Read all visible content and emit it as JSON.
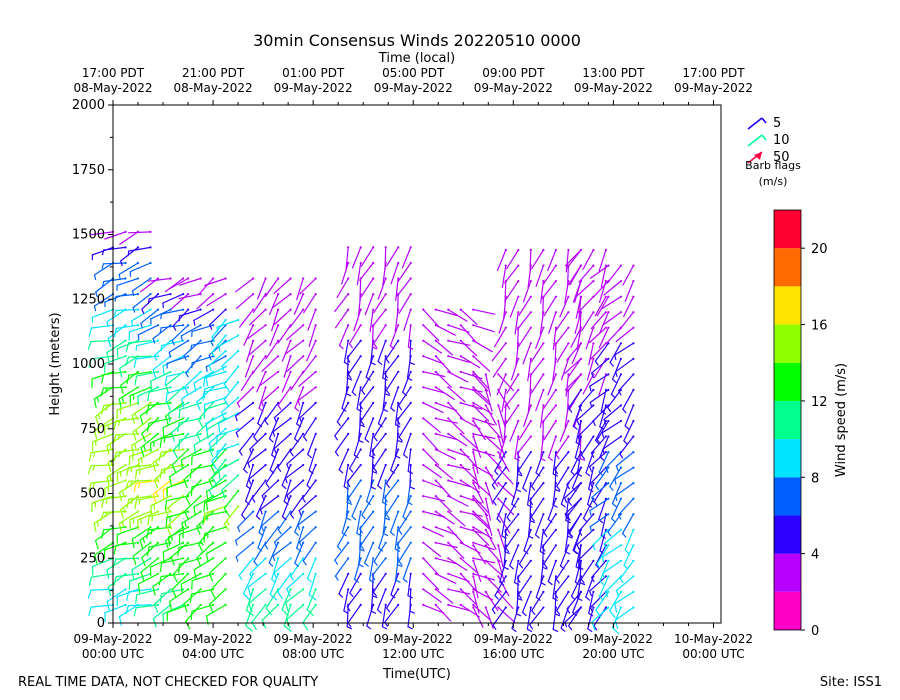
{
  "chart_data": {
    "type": "wind-barb-profile",
    "title": "30min Consensus Winds 20220510 0000",
    "top_axis_label": "Time (local)",
    "top_ticks": [
      {
        "h": 0,
        "line1": "17:00 PDT",
        "line2": "08-May-2022"
      },
      {
        "h": 4,
        "line1": "21:00 PDT",
        "line2": "08-May-2022"
      },
      {
        "h": 8,
        "line1": "01:00 PDT",
        "line2": "09-May-2022"
      },
      {
        "h": 12,
        "line1": "05:00 PDT",
        "line2": "09-May-2022"
      },
      {
        "h": 16,
        "line1": "09:00 PDT",
        "line2": "09-May-2022"
      },
      {
        "h": 20,
        "line1": "13:00 PDT",
        "line2": "09-May-2022"
      },
      {
        "h": 24,
        "line1": "17:00 PDT",
        "line2": "09-May-2022"
      }
    ],
    "xlabel": "Time(UTC)",
    "x_ticks": [
      {
        "h": 0,
        "line1": "09-May-2022",
        "line2": "00:00 UTC"
      },
      {
        "h": 4,
        "line1": "09-May-2022",
        "line2": "04:00 UTC"
      },
      {
        "h": 8,
        "line1": "09-May-2022",
        "line2": "08:00 UTC"
      },
      {
        "h": 12,
        "line1": "09-May-2022",
        "line2": "12:00 UTC"
      },
      {
        "h": 16,
        "line1": "09-May-2022",
        "line2": "16:00 UTC"
      },
      {
        "h": 20,
        "line1": "09-May-2022",
        "line2": "20:00 UTC"
      },
      {
        "h": 24,
        "line1": "10-May-2022",
        "line2": "00:00 UTC"
      }
    ],
    "xlim_hours": [
      0,
      24.3
    ],
    "ylabel": "Height (meters)",
    "ylim": [
      0,
      2000
    ],
    "y_ticks": [
      0,
      250,
      500,
      750,
      1000,
      1250,
      1500,
      1750,
      2000
    ],
    "legend": {
      "title": "Barb flags",
      "units": "(m/s)",
      "entries": [
        {
          "label": "5",
          "color": "#1a00ff"
        },
        {
          "label": "10",
          "color": "#00ff99"
        },
        {
          "label": "50",
          "color": "#ff0044"
        }
      ]
    },
    "colorbar": {
      "label": "Wind speed (m/s)",
      "ticks": [
        0,
        4,
        8,
        12,
        16,
        20
      ],
      "range": [
        0,
        22
      ],
      "bins": [
        {
          "from": 0,
          "to": 2,
          "color": "#ff00c8"
        },
        {
          "from": 2,
          "to": 4,
          "color": "#b800ff"
        },
        {
          "from": 4,
          "to": 6,
          "color": "#2b00ff"
        },
        {
          "from": 6,
          "to": 8,
          "color": "#0060ff"
        },
        {
          "from": 8,
          "to": 10,
          "color": "#00e5ff"
        },
        {
          "from": 10,
          "to": 12,
          "color": "#00ff8c"
        },
        {
          "from": 12,
          "to": 14,
          "color": "#00ff00"
        },
        {
          "from": 14,
          "to": 16,
          "color": "#90ff00"
        },
        {
          "from": 16,
          "to": 18,
          "color": "#ffe600"
        },
        {
          "from": 18,
          "to": 20,
          "color": "#ff6a00"
        },
        {
          "from": 20,
          "to": 22,
          "color": "#ff0033"
        }
      ]
    },
    "segments": [
      {
        "start": 0.0,
        "end": 1.5,
        "low": 70,
        "high": 1560,
        "profile": [
          [
            70,
            9
          ],
          [
            400,
            14
          ],
          [
            800,
            16
          ],
          [
            1100,
            10
          ],
          [
            1400,
            6
          ],
          [
            1560,
            2
          ]
        ],
        "dir": 250
      },
      {
        "start": 1.8,
        "end": 3.0,
        "low": 70,
        "high": 1350,
        "profile": [
          [
            70,
            11
          ],
          [
            300,
            13
          ],
          [
            550,
            16
          ],
          [
            800,
            13
          ],
          [
            1000,
            10
          ],
          [
            1250,
            6
          ],
          [
            1350,
            2
          ]
        ],
        "dir": 245
      },
      {
        "start": 3.0,
        "end": 4.5,
        "low": 70,
        "high": 1330,
        "profile": [
          [
            70,
            12
          ],
          [
            400,
            14
          ],
          [
            700,
            12
          ],
          [
            900,
            10
          ],
          [
            1150,
            6
          ],
          [
            1330,
            2
          ]
        ],
        "dir": 240
      },
      {
        "start": 4.5,
        "end": 5.4,
        "low": 450,
        "high": 1180,
        "profile": [
          [
            450,
            14
          ],
          [
            700,
            9
          ],
          [
            1000,
            9
          ],
          [
            1180,
            8
          ]
        ],
        "dir": 235
      },
      {
        "start": 5.6,
        "end": 8.4,
        "low": 70,
        "high": 1350,
        "profile": [
          [
            70,
            11
          ],
          [
            250,
            8
          ],
          [
            600,
            5
          ],
          [
            900,
            4
          ],
          [
            1150,
            3
          ],
          [
            1350,
            2
          ]
        ],
        "dir": 215
      },
      {
        "start": 9.4,
        "end": 11.9,
        "low": 70,
        "high": 1460,
        "profile": [
          [
            70,
            5
          ],
          [
            400,
            7
          ],
          [
            800,
            5
          ],
          [
            1100,
            4
          ],
          [
            1300,
            3
          ],
          [
            1460,
            2
          ]
        ],
        "dir": 200
      },
      {
        "start": 12.4,
        "end": 14.4,
        "low": 70,
        "high": 1220,
        "profile": [
          [
            70,
            2
          ],
          [
            400,
            3
          ],
          [
            800,
            3
          ],
          [
            1100,
            2
          ],
          [
            1220,
            2
          ]
        ],
        "dir": 120
      },
      {
        "start": 14.4,
        "end": 15.7,
        "low": 60,
        "high": 1000,
        "profile": [
          [
            60,
            2
          ],
          [
            500,
            3
          ],
          [
            800,
            2
          ],
          [
            1000,
            2
          ]
        ],
        "dir": 150
      },
      {
        "start": 15.7,
        "end": 18.7,
        "low": 60,
        "high": 1440,
        "profile": [
          [
            60,
            4
          ],
          [
            300,
            5
          ],
          [
            700,
            4
          ],
          [
            1000,
            3
          ],
          [
            1300,
            2
          ],
          [
            1440,
            2
          ]
        ],
        "dir": 200
      },
      {
        "start": 18.7,
        "end": 19.7,
        "low": 60,
        "high": 1440,
        "profile": [
          [
            60,
            5
          ],
          [
            500,
            6
          ],
          [
            900,
            4
          ],
          [
            1200,
            2
          ],
          [
            1440,
            2
          ]
        ],
        "dir": 210
      },
      {
        "start": 19.8,
        "end": 21.1,
        "low": 60,
        "high": 1400,
        "profile": [
          [
            60,
            9
          ],
          [
            400,
            8
          ],
          [
            700,
            6
          ],
          [
            1000,
            5
          ],
          [
            1200,
            3
          ],
          [
            1400,
            2
          ]
        ],
        "dir": 220
      }
    ]
  },
  "footer": {
    "disclaimer": "REAL TIME DATA, NOT CHECKED FOR QUALITY",
    "site": "Site: ISS1"
  }
}
